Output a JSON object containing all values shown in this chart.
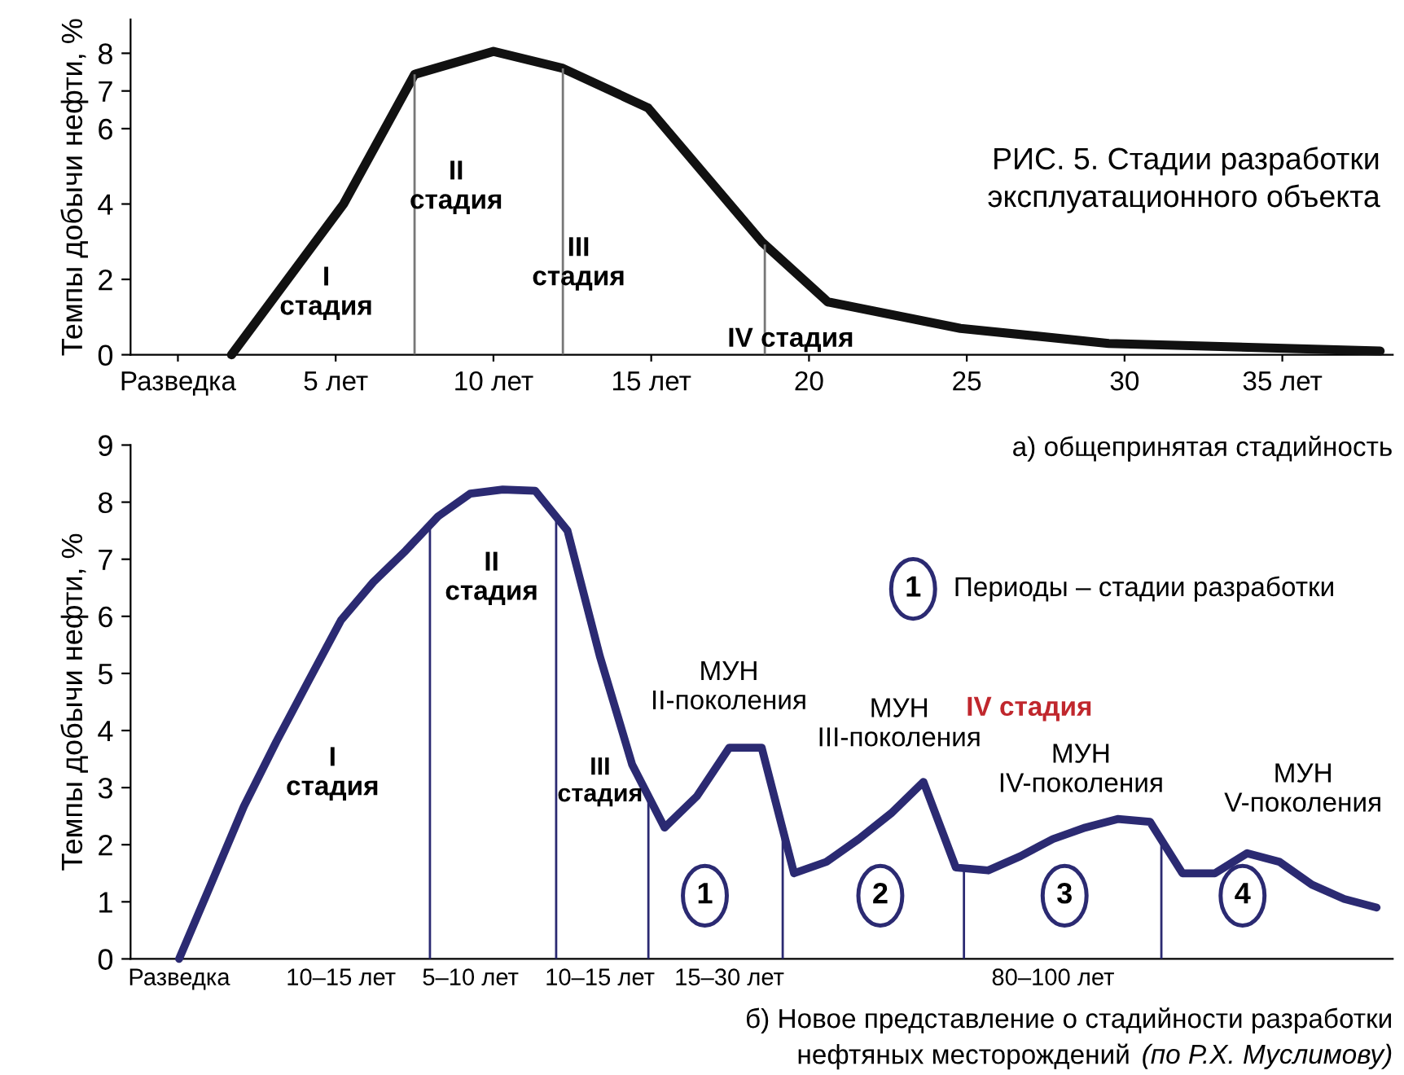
{
  "chart_data": [
    {
      "type": "line",
      "title": "РИС. 5. Стадии разработки\nэксплуатационного объекта",
      "ylabel": "Темпы добычи нефти, %",
      "x": [
        1.7,
        5.25,
        7.5,
        10,
        12.2,
        14.9,
        18.5,
        20.6,
        24.8,
        29.5,
        38.1
      ],
      "series": [
        {
          "color": "#111111",
          "values": [
            0,
            4,
            7.44,
            8.05,
            7.6,
            6.55,
            3.0,
            1.4,
            0.7,
            0.3,
            0.1
          ]
        }
      ],
      "xlim": [
        -1.5,
        38.5
      ],
      "ylim": [
        0,
        8.9
      ],
      "xticks": [
        {
          "value": 0,
          "label": "Разведка"
        },
        {
          "value": 5,
          "label": "5 лет"
        },
        {
          "value": 10,
          "label": "10 лет"
        },
        {
          "value": 15,
          "label": "15 лет"
        },
        20,
        25,
        30,
        {
          "value": 35,
          "label": "35 лет"
        }
      ],
      "yticks": [
        0,
        2,
        4,
        6,
        7,
        8
      ],
      "ref_lines": [
        {
          "axis": "x",
          "value": 7.5,
          "color": "#777777"
        },
        {
          "axis": "x",
          "value": 12.2,
          "color": "#777777"
        },
        {
          "axis": "x",
          "value": 18.6,
          "color": "#777777"
        }
      ],
      "annotations": [
        "I\nстадия",
        "II\nстадия",
        "III\nстадия",
        "IV стадия",
        "а) общепринятая стадийность"
      ],
      "grid": false,
      "legend": false,
      "marker": "none",
      "line_style": "solid"
    },
    {
      "type": "line",
      "ylabel": "Темпы добычи нефти, %",
      "categories": [
        "Разведка",
        null,
        null,
        null,
        null,
        "10–15 лет",
        null,
        null,
        null,
        "5–10 лет",
        null,
        null,
        null,
        "10–15 лет",
        null,
        null,
        null,
        "15–30 лет",
        null,
        null,
        null,
        null,
        null,
        null,
        null,
        null,
        null,
        "80–100 лет",
        null,
        null,
        null,
        null,
        null,
        null,
        null,
        null,
        null,
        null
      ],
      "series": [
        {
          "color": "#2b2a72",
          "values": [
            0,
            1.33,
            2.67,
            3.8,
            4.87,
            5.93,
            6.6,
            7.15,
            7.75,
            8.15,
            8.22,
            8.2,
            7.5,
            5.3,
            3.4,
            2.3,
            2.85,
            3.7,
            3.7,
            1.5,
            1.7,
            2.1,
            2.55,
            3.1,
            1.6,
            1.55,
            1.8,
            2.1,
            2.3,
            2.45,
            2.4,
            1.5,
            1.5,
            1.85,
            1.7,
            1.3,
            1.05,
            0.9
          ]
        }
      ],
      "ylim": [
        0,
        9
      ],
      "yticks": [
        0,
        1,
        2,
        3,
        4,
        5,
        6,
        7,
        8,
        9
      ],
      "annotations": [
        "I\nстадия",
        "II\nстадия",
        "III\nстадия",
        "МУН\nII-поколения",
        "МУН\nIII-поколения",
        "IV стадия",
        "МУН\nIV-поколения",
        "МУН\nV-поколения",
        "1",
        "2",
        "3",
        "4",
        "1",
        "Периоды – стадии разработки",
        "б) Новое представление о стадийности разработки",
        "нефтяных месторождений",
        "(по Р.Х. Муслимову)"
      ],
      "grid": false,
      "legend": false,
      "marker": "none",
      "line_style": "solid"
    }
  ]
}
